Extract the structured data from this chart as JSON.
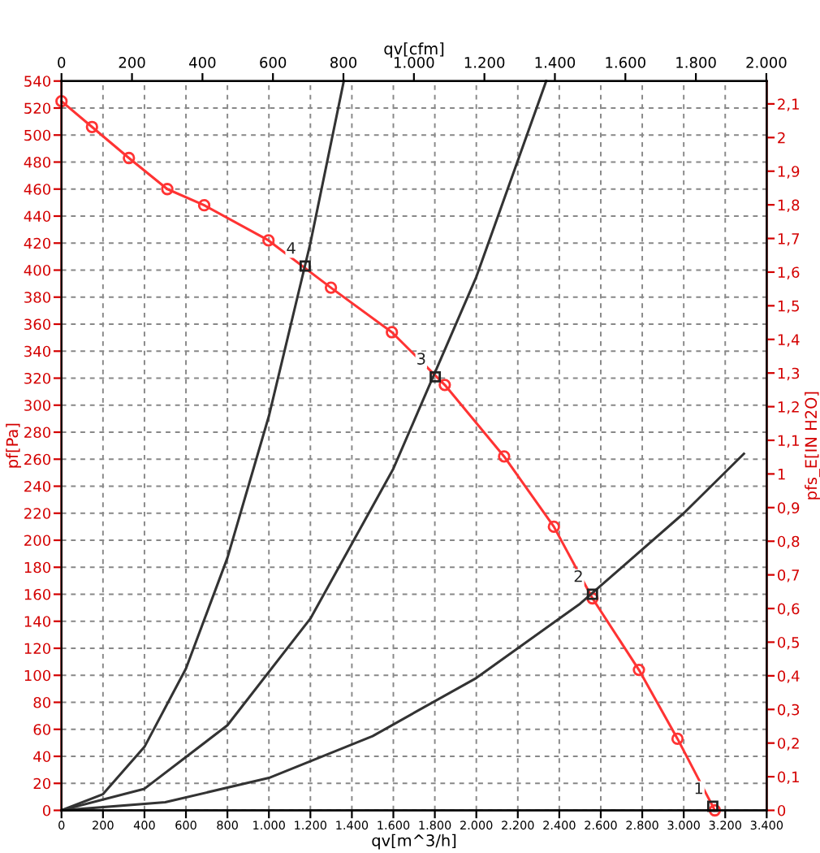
{
  "chart_data": {
    "type": "line",
    "xlabel": "qv[m^3/h]",
    "x2label": "qv[cfm]",
    "ylabel": "pf[Pa]",
    "y2label": "pfs_E[IN H2O]",
    "xlim": [
      0,
      3400
    ],
    "xticks": [
      0,
      200,
      400,
      600,
      800,
      {
        "value": 1000,
        "label": "1.000"
      },
      {
        "value": 1200,
        "label": "1.200"
      },
      {
        "value": 1400,
        "label": "1.400"
      },
      {
        "value": 1600,
        "label": "1.600"
      },
      {
        "value": 1800,
        "label": "1.800"
      },
      {
        "value": 2000,
        "label": "2.000"
      },
      {
        "value": 2200,
        "label": "2.200"
      },
      {
        "value": 2400,
        "label": "2.400"
      },
      {
        "value": 2600,
        "label": "2.600"
      },
      {
        "value": 2800,
        "label": "2.800"
      },
      {
        "value": 3000,
        "label": "3.000"
      },
      {
        "value": 3200,
        "label": "3.200"
      },
      {
        "value": 3400,
        "label": "3.400"
      }
    ],
    "x2lim": [
      0,
      2001
    ],
    "x2ticks": [
      0,
      200,
      400,
      600,
      800,
      {
        "value": 1000,
        "label": "1.000"
      },
      {
        "value": 1200,
        "label": "1.200"
      },
      {
        "value": 1400,
        "label": "1.400"
      },
      {
        "value": 1600,
        "label": "1.600"
      },
      {
        "value": 1800,
        "label": "1.800"
      },
      {
        "value": 2000,
        "label": "2.000"
      }
    ],
    "ylim": [
      0,
      540
    ],
    "yticks": [
      0,
      20,
      40,
      60,
      80,
      100,
      120,
      140,
      160,
      180,
      200,
      220,
      240,
      260,
      280,
      300,
      320,
      340,
      360,
      380,
      400,
      420,
      440,
      460,
      480,
      500,
      520,
      540
    ],
    "y2lim": [
      0,
      2.168
    ],
    "y2ticks": [
      0,
      {
        "value": 0.1,
        "label": "0,1"
      },
      {
        "value": 0.2,
        "label": "0,2"
      },
      {
        "value": 0.3,
        "label": "0,3"
      },
      {
        "value": 0.4,
        "label": "0,4"
      },
      {
        "value": 0.5,
        "label": "0,5"
      },
      {
        "value": 0.6,
        "label": "0,6"
      },
      {
        "value": 0.7,
        "label": "0,7"
      },
      {
        "value": 0.8,
        "label": "0,8"
      },
      {
        "value": 0.9,
        "label": "0,9"
      },
      1,
      {
        "value": 1.1,
        "label": "1,1"
      },
      {
        "value": 1.2,
        "label": "1,2"
      },
      {
        "value": 1.3,
        "label": "1,3"
      },
      {
        "value": 1.4,
        "label": "1,4"
      },
      {
        "value": 1.5,
        "label": "1,5"
      },
      {
        "value": 1.6,
        "label": "1,6"
      },
      {
        "value": 1.7,
        "label": "1,7"
      },
      {
        "value": 1.8,
        "label": "1,8"
      },
      {
        "value": 1.9,
        "label": "1,9"
      },
      2,
      {
        "value": 2.1,
        "label": "2,1"
      }
    ],
    "grid": true,
    "series": [
      {
        "color": "#ff3333",
        "marker": "circle",
        "x": [
          0,
          147,
          325,
          510,
          688,
          998,
          1299,
          1593,
          1848,
          2134,
          2374,
          2560,
          2784,
          2970,
          3150
        ],
        "values": [
          525,
          506,
          483,
          460,
          448,
          422,
          387,
          354,
          315,
          262,
          210,
          157,
          104,
          53,
          0
        ]
      },
      {
        "color": "#333333",
        "x": [
          0,
          200,
          400,
          600,
          800,
          1000,
          1200,
          1361
        ],
        "values": [
          0,
          12,
          47,
          105,
          187,
          292,
          420,
          540
        ]
      },
      {
        "color": "#333333",
        "x": [
          0,
          400,
          800,
          1200,
          1600,
          2000,
          2337
        ],
        "values": [
          0,
          16,
          63,
          142,
          253,
          395,
          540
        ]
      },
      {
        "color": "#333333",
        "x": [
          0,
          500,
          1000,
          1500,
          2000,
          2500,
          3000,
          3290
        ],
        "values": [
          0,
          6,
          24,
          55,
          98,
          153,
          220,
          264
        ]
      }
    ],
    "annotations": [
      {
        "text": "4",
        "x": 1175,
        "y": 403
      },
      {
        "text": "3",
        "x": 1802,
        "y": 321
      },
      {
        "text": "2",
        "x": 2560,
        "y": 160
      },
      {
        "text": "1",
        "x": 3140,
        "y": 3
      }
    ]
  }
}
